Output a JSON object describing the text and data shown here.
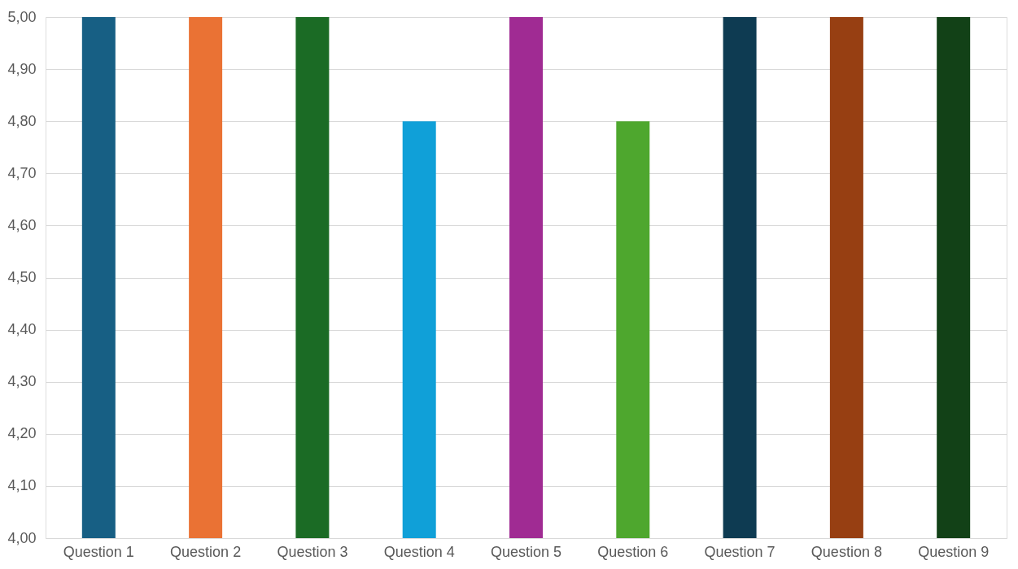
{
  "chart_data": {
    "type": "bar",
    "categories": [
      "Question 1",
      "Question 2",
      "Question 3",
      "Question 4",
      "Question 5",
      "Question 6",
      "Question 7",
      "Question 8",
      "Question 9"
    ],
    "values": [
      5.0,
      5.0,
      5.0,
      4.8,
      5.0,
      4.8,
      5.0,
      5.0,
      5.0
    ],
    "colors": [
      "#175f84",
      "#ea7234",
      "#1b6b25",
      "#10a0d8",
      "#a02b93",
      "#4ea72e",
      "#0e3b52",
      "#973f12",
      "#124117"
    ],
    "ylim": [
      4.0,
      5.0
    ],
    "yticks": [
      {
        "value": 4.0,
        "label": "4,00"
      },
      {
        "value": 4.1,
        "label": "4,10"
      },
      {
        "value": 4.2,
        "label": "4,20"
      },
      {
        "value": 4.3,
        "label": "4,30"
      },
      {
        "value": 4.4,
        "label": "4,40"
      },
      {
        "value": 4.5,
        "label": "4,50"
      },
      {
        "value": 4.6,
        "label": "4,60"
      },
      {
        "value": 4.7,
        "label": "4,70"
      },
      {
        "value": 4.8,
        "label": "4,80"
      },
      {
        "value": 4.9,
        "label": "4,90"
      },
      {
        "value": 5.0,
        "label": "5,00"
      }
    ],
    "grid": "y",
    "legend": false
  }
}
